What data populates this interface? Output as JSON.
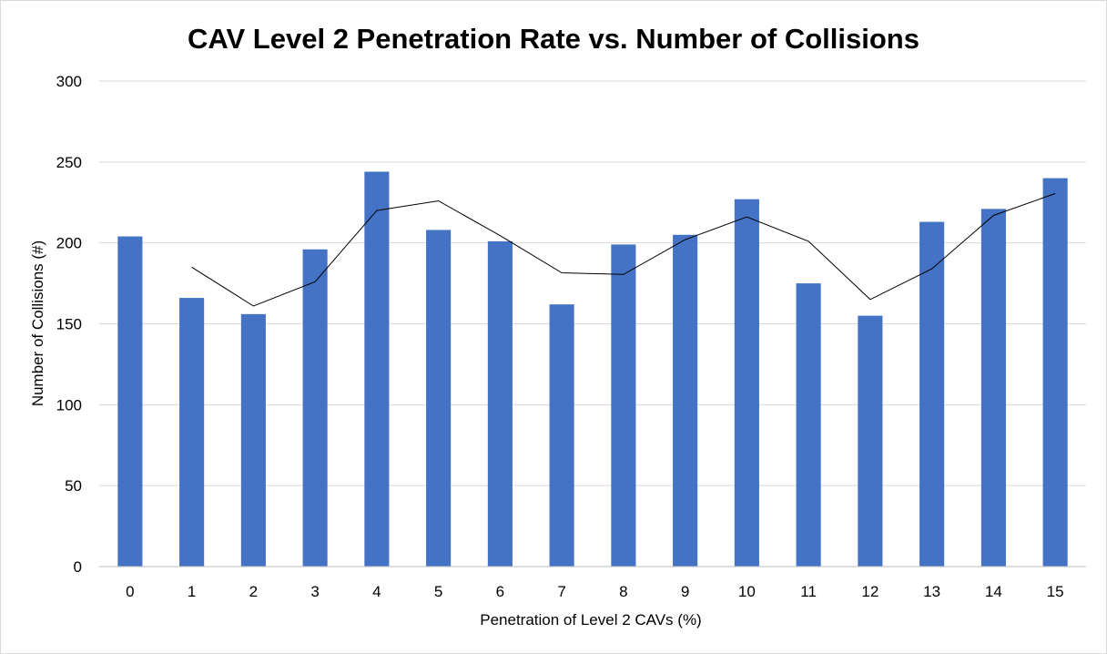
{
  "chart_data": {
    "type": "bar",
    "title": "CAV Level 2 Penetration Rate vs. Number of Collisions",
    "xlabel": "Penetration of Level 2 CAVs (%)",
    "ylabel": "Number of Collisions (#)",
    "categories": [
      "0",
      "1",
      "2",
      "3",
      "4",
      "5",
      "6",
      "7",
      "8",
      "9",
      "10",
      "11",
      "12",
      "13",
      "14",
      "15"
    ],
    "values": [
      204,
      166,
      156,
      196,
      244,
      208,
      201,
      162,
      199,
      205,
      227,
      175,
      155,
      213,
      221,
      240
    ],
    "trendline": [
      null,
      185,
      161,
      176,
      220,
      226,
      204.5,
      181.5,
      180.5,
      202,
      216,
      201,
      165,
      184,
      217,
      230.5
    ],
    "ylim": [
      0,
      300
    ],
    "yticks": [
      0,
      50,
      100,
      150,
      200,
      250,
      300
    ],
    "grid": true,
    "legend": "none",
    "colors": {
      "bar": "#4472c4",
      "trendline": "#000000",
      "grid": "#d9d9d9",
      "axis": "#bfbfbf"
    }
  }
}
